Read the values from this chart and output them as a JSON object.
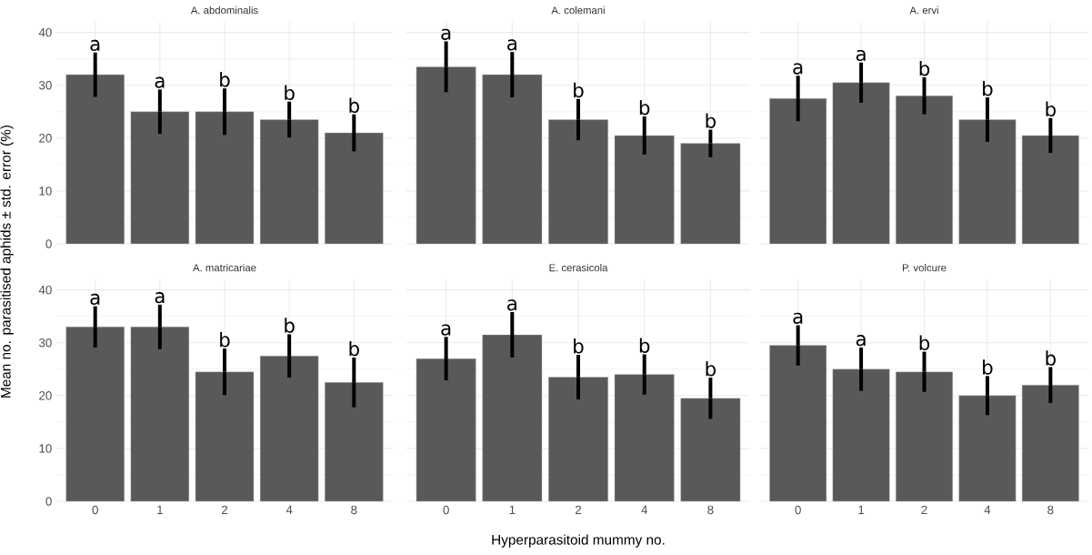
{
  "chart_data": [
    {
      "type": "bar",
      "title": "A. abdominalis",
      "ylabel": "Mean no. parasitised aphids ± std. error (%)",
      "categories": [
        "0",
        "1",
        "2",
        "4",
        "8"
      ],
      "values": [
        32,
        25,
        25,
        23.5,
        21
      ],
      "errors": [
        4.2,
        4.2,
        4.4,
        3.4,
        3.5
      ],
      "color": "#595959",
      "ylim": [
        0,
        42
      ],
      "yticks": [
        0,
        10,
        20,
        30,
        40
      ],
      "grid": true,
      "tick_labels": "y",
      "annotations": [
        {
          "text": "a",
          "x": "0",
          "y": 36.2
        },
        {
          "text": "a",
          "x": "1",
          "y": 29.2
        },
        {
          "text": "b",
          "x": "2",
          "y": 29.4
        },
        {
          "text": "b",
          "x": "4",
          "y": 26.9
        },
        {
          "text": "b",
          "x": "8",
          "y": 24.5
        }
      ]
    },
    {
      "type": "bar",
      "title": "A. colemani",
      "categories": [
        "0",
        "1",
        "2",
        "4",
        "8"
      ],
      "values": [
        33.5,
        32,
        23.5,
        20.5,
        19
      ],
      "errors": [
        4.8,
        4.3,
        3.9,
        3.6,
        2.6
      ],
      "color": "#595959",
      "ylim": [
        0,
        42
      ],
      "yticks": [
        0,
        10,
        20,
        30,
        40
      ],
      "grid": true,
      "tick_labels": false,
      "annotations": [
        {
          "text": "a",
          "x": "0",
          "y": 38.3
        },
        {
          "text": "a",
          "x": "1",
          "y": 36.3
        },
        {
          "text": "b",
          "x": "2",
          "y": 27.4
        },
        {
          "text": "b",
          "x": "4",
          "y": 24.1
        },
        {
          "text": "b",
          "x": "8",
          "y": 21.6
        }
      ]
    },
    {
      "type": "bar",
      "title": "A. ervi",
      "categories": [
        "0",
        "1",
        "2",
        "4",
        "8"
      ],
      "values": [
        27.5,
        30.5,
        28,
        23.5,
        20.5
      ],
      "errors": [
        4.3,
        3.8,
        3.5,
        4.2,
        3.3
      ],
      "color": "#595959",
      "ylim": [
        0,
        42
      ],
      "yticks": [
        0,
        10,
        20,
        30,
        40
      ],
      "grid": true,
      "tick_labels": false,
      "annotations": [
        {
          "text": "a",
          "x": "0",
          "y": 31.8
        },
        {
          "text": "a",
          "x": "1",
          "y": 34.3
        },
        {
          "text": "b",
          "x": "2",
          "y": 31.5
        },
        {
          "text": "b",
          "x": "4",
          "y": 27.7
        },
        {
          "text": "b",
          "x": "8",
          "y": 23.8
        }
      ]
    },
    {
      "type": "bar",
      "title": "A. matricariae",
      "categories": [
        "0",
        "1",
        "2",
        "4",
        "8"
      ],
      "values": [
        33,
        33,
        24.5,
        27.5,
        22.5
      ],
      "errors": [
        3.9,
        4.2,
        4.4,
        4.1,
        4.7
      ],
      "color": "#595959",
      "ylim": [
        0,
        42
      ],
      "yticks": [
        0,
        10,
        20,
        30,
        40
      ],
      "grid": true,
      "annotations": [
        {
          "text": "a",
          "x": "0",
          "y": 36.9
        },
        {
          "text": "a",
          "x": "1",
          "y": 37.2
        },
        {
          "text": "b",
          "x": "2",
          "y": 28.9
        },
        {
          "text": "b",
          "x": "4",
          "y": 31.6
        },
        {
          "text": "b",
          "x": "8",
          "y": 27.2
        }
      ]
    },
    {
      "type": "bar",
      "title": "E. cerasicola",
      "xlabel": "Hyperparasitoid mummy no.",
      "categories": [
        "0",
        "1",
        "2",
        "4",
        "8"
      ],
      "values": [
        27,
        31.5,
        23.5,
        24,
        19.5
      ],
      "errors": [
        4.1,
        4.3,
        4.2,
        3.8,
        3.9
      ],
      "color": "#595959",
      "ylim": [
        0,
        42
      ],
      "yticks": [
        0,
        10,
        20,
        30,
        40
      ],
      "grid": true,
      "tick_labels": "x",
      "annotations": [
        {
          "text": "a",
          "x": "0",
          "y": 31.1
        },
        {
          "text": "a",
          "x": "1",
          "y": 35.8
        },
        {
          "text": "b",
          "x": "2",
          "y": 27.7
        },
        {
          "text": "b",
          "x": "4",
          "y": 27.8
        },
        {
          "text": "b",
          "x": "8",
          "y": 23.4
        }
      ]
    },
    {
      "type": "bar",
      "title": "P. volcure",
      "categories": [
        "0",
        "1",
        "2",
        "4",
        "8"
      ],
      "values": [
        29.5,
        25,
        24.5,
        20,
        22
      ],
      "errors": [
        3.8,
        4.1,
        3.8,
        3.7,
        3.4
      ],
      "color": "#595959",
      "ylim": [
        0,
        42
      ],
      "yticks": [
        0,
        10,
        20,
        30,
        40
      ],
      "grid": true,
      "tick_labels": "x",
      "annotations": [
        {
          "text": "a",
          "x": "0",
          "y": 33.3
        },
        {
          "text": "a",
          "x": "1",
          "y": 29.1
        },
        {
          "text": "b",
          "x": "2",
          "y": 28.3
        },
        {
          "text": "b",
          "x": "4",
          "y": 23.7
        },
        {
          "text": "b",
          "x": "8",
          "y": 25.4
        }
      ]
    }
  ]
}
